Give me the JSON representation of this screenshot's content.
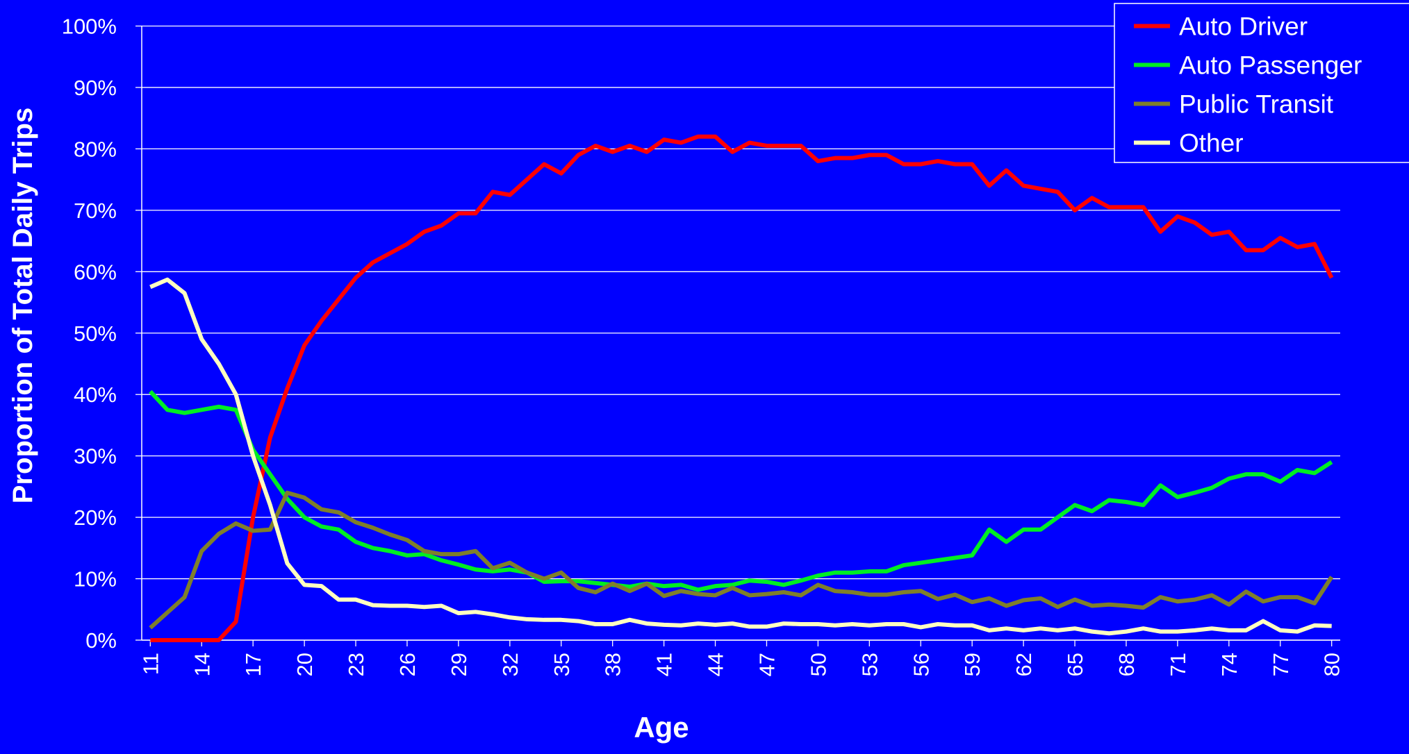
{
  "chart_data": {
    "type": "line",
    "xlabel": "Age",
    "ylabel": "Proportion of Total Daily Trips",
    "x": [
      11,
      12,
      13,
      14,
      15,
      16,
      17,
      18,
      19,
      20,
      21,
      22,
      23,
      24,
      25,
      26,
      27,
      28,
      29,
      30,
      31,
      32,
      33,
      34,
      35,
      36,
      37,
      38,
      39,
      40,
      41,
      42,
      43,
      44,
      45,
      46,
      47,
      48,
      49,
      50,
      51,
      52,
      53,
      54,
      55,
      56,
      57,
      58,
      59,
      60,
      61,
      62,
      63,
      64,
      65,
      66,
      67,
      68,
      69,
      70,
      71,
      72,
      73,
      74,
      75,
      76,
      77,
      78,
      79,
      80
    ],
    "xlim": [
      10.5,
      80.5
    ],
    "xticks": [
      11,
      14,
      17,
      20,
      23,
      26,
      29,
      32,
      35,
      38,
      41,
      44,
      47,
      50,
      53,
      56,
      59,
      62,
      65,
      68,
      71,
      74,
      77,
      80
    ],
    "ylim": [
      0,
      100
    ],
    "yticks": [
      {
        "value": 0,
        "label": "0%"
      },
      {
        "value": 10,
        "label": "10%"
      },
      {
        "value": 20,
        "label": "20%"
      },
      {
        "value": 30,
        "label": "30%"
      },
      {
        "value": 40,
        "label": "40%"
      },
      {
        "value": 50,
        "label": "50%"
      },
      {
        "value": 60,
        "label": "60%"
      },
      {
        "value": 70,
        "label": "70%"
      },
      {
        "value": 80,
        "label": "80%"
      },
      {
        "value": 90,
        "label": "90%"
      },
      {
        "value": 100,
        "label": "100%"
      }
    ],
    "grid": true,
    "legend": "top-right",
    "series": [
      {
        "name": "Auto Driver",
        "color": "#ff0000",
        "values": [
          0,
          0,
          0,
          0,
          0,
          3,
          20,
          33,
          41,
          48,
          52,
          55.5,
          59,
          61.5,
          63,
          64.5,
          66.5,
          67.5,
          69.5,
          69.5,
          73,
          72.5,
          75,
          77.5,
          76,
          79,
          80.5,
          79.5,
          80.5,
          79.5,
          81.5,
          81,
          82,
          82,
          79.5,
          81,
          80.5,
          80.5,
          80.5,
          78,
          78.5,
          78.5,
          79,
          79,
          77.5,
          77.5,
          78,
          77.5,
          77.5,
          74,
          76.5,
          74,
          73.5,
          73,
          70,
          72,
          70.5,
          70.5,
          70.5,
          66.5,
          69,
          68,
          66,
          66.5,
          63.5,
          63.5,
          65.5,
          64,
          64.5,
          59
        ]
      },
      {
        "name": "Auto Passenger",
        "color": "#00ee22",
        "values": [
          40.5,
          37.5,
          37,
          37.5,
          38,
          37.5,
          31,
          27,
          23,
          20,
          18.5,
          18,
          16,
          15,
          14.5,
          13.8,
          14,
          13,
          12.3,
          11.5,
          11.2,
          11.5,
          11,
          9.5,
          9.6,
          9.6,
          9.3,
          9,
          8.7,
          9.2,
          8.8,
          9,
          8.2,
          8.8,
          9,
          9.7,
          9.5,
          9,
          9.7,
          10.5,
          11,
          11,
          11.2,
          11.2,
          12.2,
          12.6,
          13,
          13.4,
          13.8,
          18,
          16,
          18,
          18,
          20,
          22,
          21,
          22.8,
          22.5,
          22,
          25.2,
          23.3,
          24,
          24.8,
          26.3,
          27,
          27,
          25.8,
          27.7,
          27.2,
          29
        ]
      },
      {
        "name": "Public Transit",
        "color": "#7f7f2a",
        "values": [
          2,
          4.5,
          7,
          14.5,
          17.3,
          19,
          17.8,
          18,
          24,
          23.2,
          21.3,
          20.8,
          19.2,
          18.3,
          17.2,
          16.3,
          14.5,
          14,
          14,
          14.5,
          11.7,
          12.6,
          11,
          10,
          11,
          8.5,
          7.8,
          9.2,
          8,
          9.2,
          7.2,
          8,
          7.5,
          7.3,
          8.5,
          7.3,
          7.5,
          7.8,
          7.3,
          9,
          8,
          7.8,
          7.4,
          7.4,
          7.8,
          8,
          6.7,
          7.4,
          6.2,
          6.8,
          5.6,
          6.5,
          6.8,
          5.4,
          6.6,
          5.6,
          5.8,
          5.6,
          5.3,
          7,
          6.3,
          6.6,
          7.3,
          5.8,
          7.9,
          6.3,
          7,
          7,
          6,
          10.3
        ]
      },
      {
        "name": "Other",
        "color": "#ffffc0",
        "values": [
          57.5,
          58.7,
          56.5,
          49,
          45,
          40,
          30,
          22,
          12.5,
          9,
          8.8,
          6.6,
          6.6,
          5.7,
          5.6,
          5.6,
          5.4,
          5.6,
          4.4,
          4.6,
          4.2,
          3.7,
          3.4,
          3.3,
          3.3,
          3.1,
          2.6,
          2.6,
          3.3,
          2.7,
          2.5,
          2.4,
          2.7,
          2.5,
          2.7,
          2.2,
          2.2,
          2.7,
          2.6,
          2.6,
          2.4,
          2.6,
          2.4,
          2.6,
          2.6,
          2.1,
          2.6,
          2.4,
          2.4,
          1.6,
          1.9,
          1.6,
          1.9,
          1.6,
          1.9,
          1.4,
          1.1,
          1.4,
          1.9,
          1.4,
          1.4,
          1.6,
          1.9,
          1.6,
          1.6,
          3.1,
          1.6,
          1.4,
          2.4,
          2.3
        ]
      }
    ]
  }
}
